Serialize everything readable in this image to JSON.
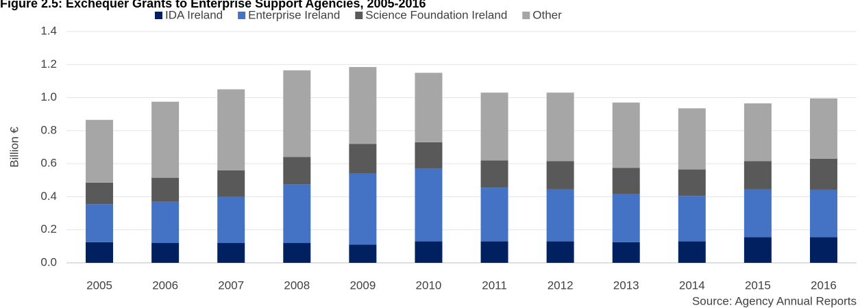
{
  "chart_data": {
    "type": "stacked_bar",
    "title": "Figure 2.5: Exchequer Grants to Enterprise Support Agencies, 2005-2016",
    "y_label": "Billion €",
    "source": "Source: Agency Annual Reports",
    "categories": [
      "2005",
      "2006",
      "2007",
      "2008",
      "2009",
      "2010",
      "2011",
      "2012",
      "2013",
      "2014",
      "2015",
      "2016"
    ],
    "series": [
      {
        "name": "IDA Ireland",
        "color": "#002060",
        "values": [
          0.125,
          0.12,
          0.12,
          0.12,
          0.11,
          0.13,
          0.13,
          0.13,
          0.125,
          0.13,
          0.155,
          0.155
        ]
      },
      {
        "name": "Enterprise Ireland",
        "color": "#4472c4",
        "values": [
          0.23,
          0.25,
          0.28,
          0.355,
          0.43,
          0.44,
          0.325,
          0.315,
          0.29,
          0.275,
          0.29,
          0.285
        ]
      },
      {
        "name": "Science Foundation Ireland",
        "color": "#595959",
        "values": [
          0.13,
          0.145,
          0.16,
          0.165,
          0.18,
          0.16,
          0.165,
          0.17,
          0.16,
          0.16,
          0.17,
          0.19
        ]
      },
      {
        "name": "Other",
        "color": "#a6a6a6",
        "values": [
          0.38,
          0.46,
          0.49,
          0.525,
          0.465,
          0.42,
          0.41,
          0.415,
          0.395,
          0.37,
          0.35,
          0.365
        ]
      }
    ],
    "ylim": [
      0,
      1.4
    ],
    "yticks": [
      {
        "value": 0,
        "label": "0.0"
      },
      0.2,
      0.4,
      0.6,
      0.8,
      {
        "value": 1,
        "label": "1.0"
      },
      1.2,
      1.4
    ],
    "grid": true,
    "legend": "top"
  }
}
